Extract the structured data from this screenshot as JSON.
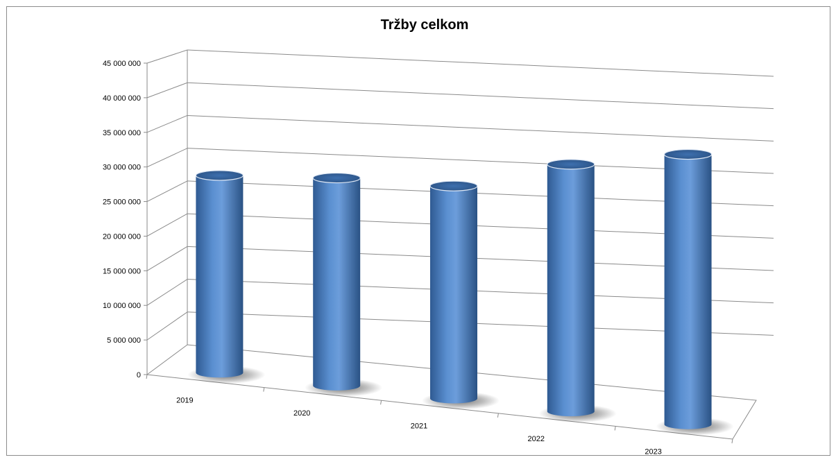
{
  "chart_data": {
    "type": "bar",
    "style": "3d-cylinder",
    "title": "Tržby celkom",
    "xlabel": "",
    "ylabel": "",
    "categories": [
      "2019",
      "2020",
      "2021",
      "2022",
      "2023"
    ],
    "series": [
      {
        "values": [
          28500000,
          30000000,
          30700000,
          35700000,
          39000000
        ]
      }
    ],
    "ylim": [
      0,
      45000000
    ],
    "yticks": [
      0,
      5000000,
      10000000,
      15000000,
      20000000,
      25000000,
      30000000,
      35000000,
      40000000,
      45000000
    ],
    "ytick_labels": [
      "0",
      "5 000 000",
      "10 000 000",
      "15 000 000",
      "20 000 000",
      "25 000 000",
      "30 000 000",
      "35 000 000",
      "40 000 000",
      "45 000 000"
    ],
    "grid": true,
    "legend": "none",
    "colors": {
      "bar": "#4a7ebb",
      "bar_light": "#7aa6dc",
      "bar_dark": "#2c5385",
      "grid": "#8a8a8a",
      "axis": "#8a8a8a"
    }
  }
}
